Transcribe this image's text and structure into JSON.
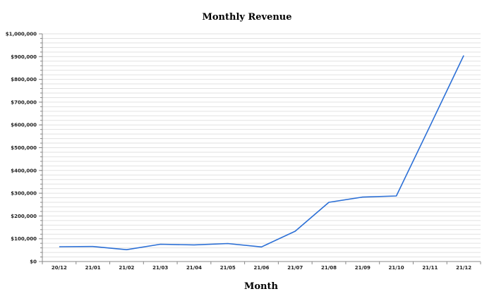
{
  "chart_data": {
    "type": "line",
    "title": "Monthly Revenue",
    "xlabel": "Month",
    "ylabel": "",
    "categories": [
      "20/12",
      "21/01",
      "21/02",
      "21/03",
      "21/04",
      "21/05",
      "21/06",
      "21/07",
      "21/08",
      "21/09",
      "21/10",
      "21/11",
      "21/12"
    ],
    "series": [
      {
        "values": [
          65000,
          66000,
          52000,
          76000,
          73000,
          79000,
          64000,
          133000,
          260000,
          283000,
          288000,
          595000,
          905000
        ],
        "color": "#2b6fd6"
      }
    ],
    "ylim": [
      0,
      1000000
    ],
    "yticks": [
      0,
      100000,
      200000,
      300000,
      400000,
      500000,
      600000,
      700000,
      800000,
      900000,
      1000000
    ],
    "ytick_labels": [
      "$0",
      "$100,000",
      "$200,000",
      "$300,000",
      "$400,000",
      "$500,000",
      "$600,000",
      "$700,000",
      "$800,000",
      "$900,000",
      "$1,000,000"
    ],
    "minor_ticks_per_major": 5,
    "grid": true,
    "legend": "none"
  }
}
